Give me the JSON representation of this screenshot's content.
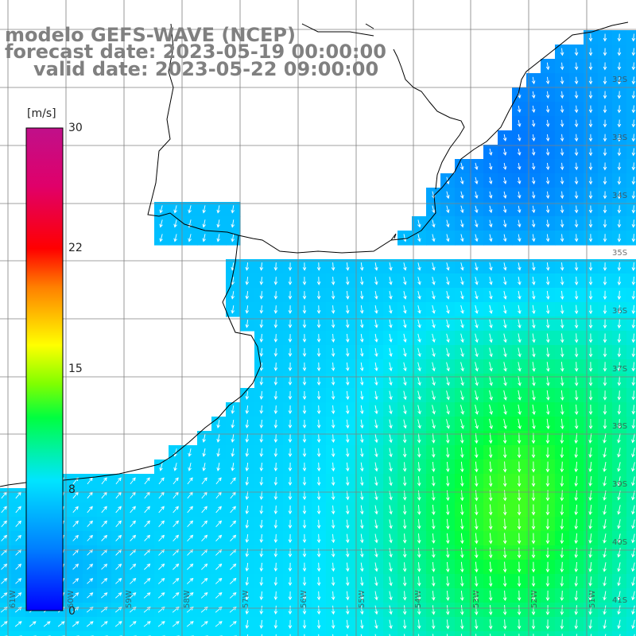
{
  "title": {
    "line1": "modelo GEFS-WAVE (NCEP)",
    "line2": "forecast date: 2023-05-19 00:00:00",
    "line3": "valid date: 2023-05-22 09:00:00"
  },
  "colorbar": {
    "unit": "[m/s]",
    "ticks": [
      "30",
      "22",
      "15",
      "8",
      "0"
    ],
    "tick_values": [
      30,
      22,
      15,
      8,
      0
    ],
    "range": [
      0,
      30
    ],
    "colors": [
      "#0000ff",
      "#0080ff",
      "#00e5ff",
      "#00ff40",
      "#80ff00",
      "#ffff00",
      "#ff8000",
      "#ff0000",
      "#e0006a",
      "#c0108a"
    ]
  },
  "lat_labels": [
    "32S",
    "33S",
    "34S",
    "35S",
    "36S",
    "37S",
    "38S",
    "39S",
    "40S",
    "41S"
  ],
  "lon_labels": [
    "61W",
    "60W",
    "59W",
    "58W",
    "57W",
    "56W",
    "55W",
    "54W",
    "53W",
    "52W",
    "51W"
  ],
  "field": {
    "variable": "wind speed",
    "lon_range": [
      -62,
      -50.5
    ],
    "lat_range": [
      -41.5,
      -31.5
    ],
    "vectors": "wind direction arrows"
  },
  "colors": {
    "title": "#808080",
    "land": "#ffffff",
    "coast": "#000000",
    "grid": "#808080"
  }
}
